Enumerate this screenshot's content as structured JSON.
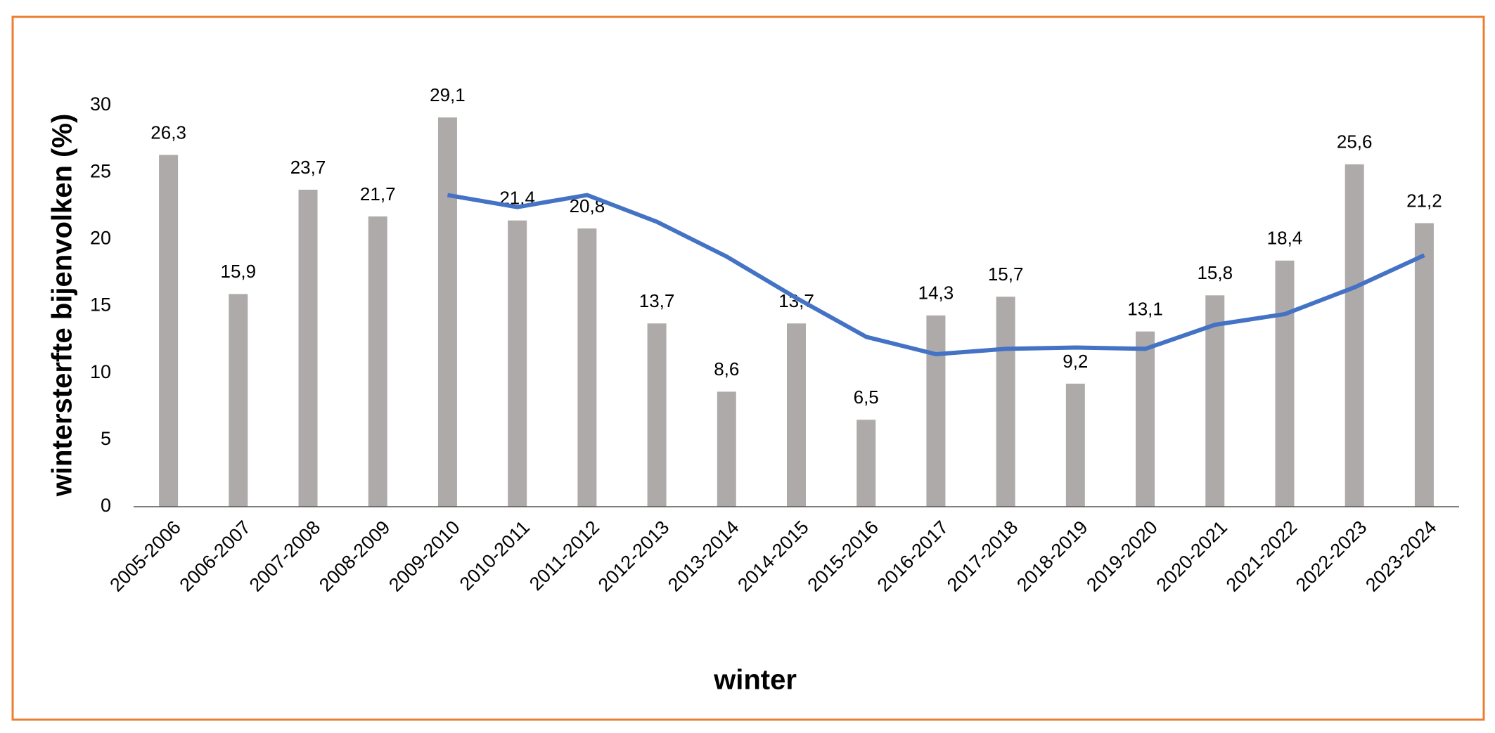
{
  "chart_data": {
    "type": "bar",
    "x_label": "winter",
    "y_label": "wintersterfte bijenvolken (%)",
    "categories": [
      "2005-2006",
      "2006-2007",
      "2007-2008",
      "2008-2009",
      "2009-2010",
      "2010-2011",
      "2011-2012",
      "2012-2013",
      "2013-2014",
      "2014-2015",
      "2015-2016",
      "2016-2017",
      "2017-2018",
      "2018-2019",
      "2019-2020",
      "2020-2021",
      "2021-2022",
      "2022-2023",
      "2023-2024"
    ],
    "series": [
      {
        "type": "bar",
        "color": "#aeaaaa",
        "values": [
          26.3,
          15.9,
          23.7,
          21.7,
          29.1,
          21.4,
          20.8,
          13.7,
          8.6,
          13.7,
          6.5,
          14.3,
          15.7,
          9.2,
          13.1,
          15.8,
          18.4,
          25.6,
          21.2
        ],
        "value_labels": [
          "26,3",
          "15,9",
          "23,7",
          "21,7",
          "29,1",
          "21,4",
          "20,8",
          "13,7",
          "8,6",
          "13,7",
          "6,5",
          "14,3",
          "15,7",
          "9,2",
          "13,1",
          "15,8",
          "18,4",
          "25,6",
          "21,2"
        ]
      },
      {
        "type": "line",
        "color": "#4472c4",
        "values": [
          null,
          null,
          null,
          null,
          23.3,
          22.4,
          23.3,
          21.3,
          18.7,
          15.6,
          12.7,
          11.4,
          11.8,
          11.9,
          11.8,
          13.6,
          14.4,
          16.4,
          18.8
        ]
      }
    ],
    "ylim": [
      0,
      30
    ],
    "yticks": [
      0,
      5,
      10,
      15,
      20,
      25,
      30
    ],
    "grid": false
  }
}
